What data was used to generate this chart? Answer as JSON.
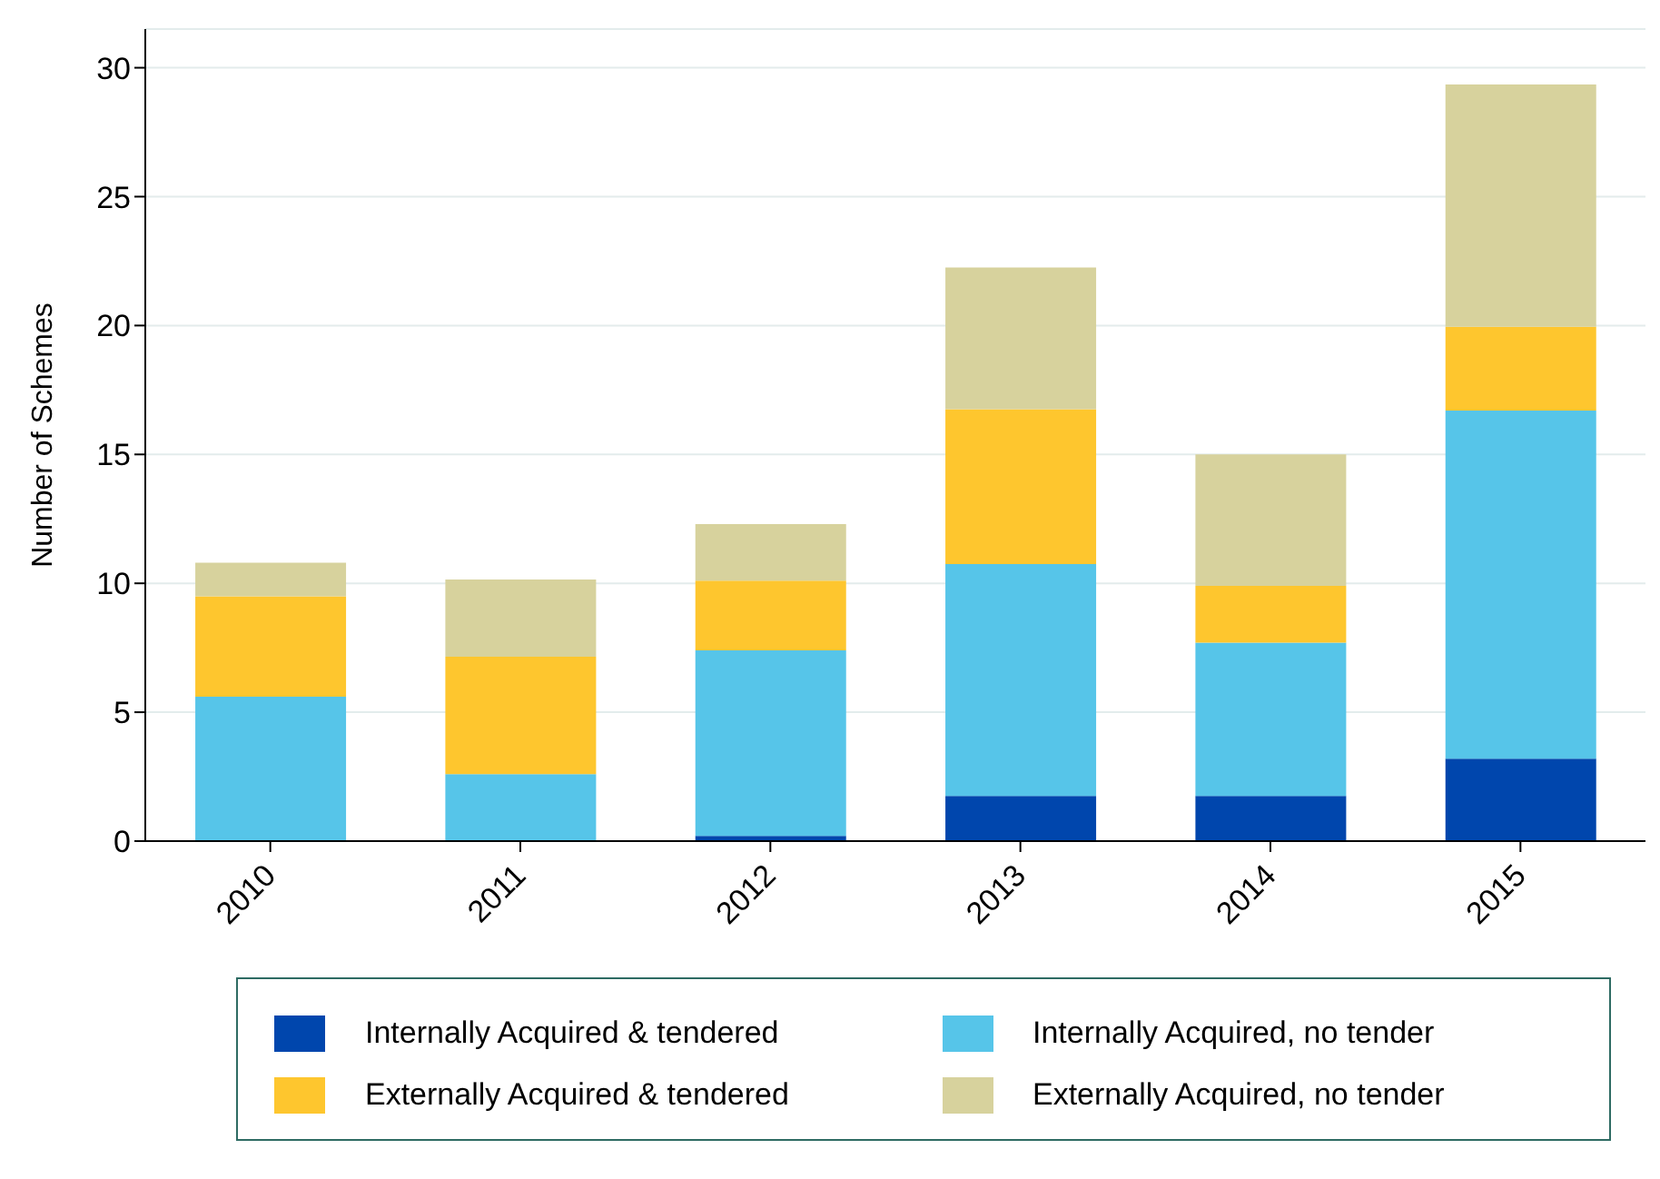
{
  "chart_data": {
    "type": "bar",
    "stacked": true,
    "ylabel": "Number of Schemes",
    "categories": [
      "2010",
      "2011",
      "2012",
      "2013",
      "2014",
      "2015"
    ],
    "series": [
      {
        "name": "Internally Acquired & tendered",
        "color": "#0046ad",
        "values": [
          0,
          0,
          0.2,
          1.75,
          1.75,
          3.2
        ]
      },
      {
        "name": "Internally Acquired, no tender",
        "color": "#56c5e9",
        "values": [
          5.6,
          2.6,
          7.2,
          9.0,
          5.95,
          13.5
        ]
      },
      {
        "name": "Externally Acquired & tendered",
        "color": "#fec62e",
        "values": [
          3.9,
          4.55,
          2.7,
          6.0,
          2.2,
          3.25
        ]
      },
      {
        "name": "Externally Acquired, no tender",
        "color": "#d7d29d",
        "values": [
          1.3,
          3.0,
          2.2,
          5.5,
          5.1,
          9.4
        ]
      }
    ],
    "ylim": [
      0,
      31.5
    ],
    "yticks": [
      0,
      5,
      10,
      15,
      20,
      25,
      30
    ],
    "grid": "y",
    "legend": "bottom"
  }
}
